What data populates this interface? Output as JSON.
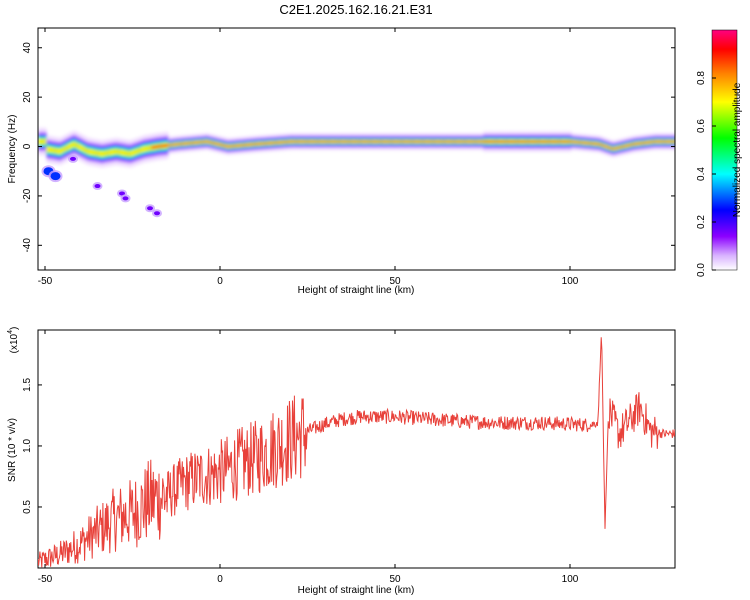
{
  "title": "C2E1.2025.162.16.21.E31",
  "chart_data": [
    {
      "type": "heatmap",
      "xlabel": "Height of straight line (km)",
      "ylabel": "Frequency (Hz)",
      "xlim": [
        -52,
        130
      ],
      "ylim": [
        -50,
        48
      ],
      "xticks": [
        -50,
        0,
        50,
        100
      ],
      "xtick_labels": [
        "-50",
        "0",
        "50",
        "100"
      ],
      "yticks": [
        40,
        20,
        0,
        -20,
        -40
      ],
      "ytick_labels": [
        "40",
        "20",
        "0",
        "-20",
        "-40"
      ],
      "ridge": [
        {
          "x": -50,
          "f": -1
        },
        {
          "x": -46,
          "f": -2
        },
        {
          "x": -42,
          "f": 1
        },
        {
          "x": -38,
          "f": -2
        },
        {
          "x": -34,
          "f": -3
        },
        {
          "x": -30,
          "f": -2
        },
        {
          "x": -26,
          "f": -3
        },
        {
          "x": -22,
          "f": -1
        },
        {
          "x": -18,
          "f": 0
        },
        {
          "x": -12,
          "f": 1
        },
        {
          "x": -4,
          "f": 2
        },
        {
          "x": 2,
          "f": 0
        },
        {
          "x": 10,
          "f": 1
        },
        {
          "x": 20,
          "f": 2
        },
        {
          "x": 40,
          "f": 2
        },
        {
          "x": 60,
          "f": 2
        },
        {
          "x": 80,
          "f": 2
        },
        {
          "x": 100,
          "f": 2
        },
        {
          "x": 108,
          "f": 1
        },
        {
          "x": 112,
          "f": -1
        },
        {
          "x": 118,
          "f": 1
        },
        {
          "x": 124,
          "f": 2
        },
        {
          "x": 130,
          "f": 2
        }
      ],
      "blobs": [
        {
          "x": -49,
          "f": -10
        },
        {
          "x": -47,
          "f": -12
        },
        {
          "x": -42,
          "f": -5
        },
        {
          "x": -35,
          "f": -16
        },
        {
          "x": -28,
          "f": -19
        },
        {
          "x": -27,
          "f": -21
        },
        {
          "x": -18,
          "f": -27
        },
        {
          "x": -20,
          "f": -25
        }
      ],
      "colorbar": {
        "label": "Normalized spectral amplitude",
        "ticks": [
          0.0,
          0.2,
          0.4,
          0.6,
          0.8
        ],
        "tick_labels": [
          "0.0",
          "0.2",
          "0.4",
          "0.6",
          "0.8"
        ],
        "colors": [
          "#ffffff",
          "#9a00ff",
          "#0000ff",
          "#00ffff",
          "#00ff00",
          "#ffff00",
          "#ff8000",
          "#ff0000",
          "#ff0080"
        ]
      }
    },
    {
      "type": "line",
      "xlabel": "Height of straight line (km)",
      "ylabel": "SNR (10 * v/v)",
      "exponent_label": "(x10",
      "exponent": "4",
      "xlim": [
        -52,
        130
      ],
      "ylim": [
        0.0,
        1.95
      ],
      "xticks": [
        -50,
        0,
        50,
        100
      ],
      "xtick_labels": [
        "-50",
        "0",
        "50",
        "100"
      ],
      "yticks": [
        0.5,
        1.0,
        1.5
      ],
      "ytick_labels": [
        "0.5",
        "1.0",
        "1.5"
      ],
      "color": "#e8413a",
      "series": [
        {
          "values_envelope": [
            {
              "x": -52,
              "y": 0.05
            },
            {
              "x": -45,
              "y": 0.12
            },
            {
              "x": -40,
              "y": 0.2
            },
            {
              "x": -35,
              "y": 0.3
            },
            {
              "x": -30,
              "y": 0.4
            },
            {
              "x": -25,
              "y": 0.45
            },
            {
              "x": -20,
              "y": 0.55
            },
            {
              "x": -15,
              "y": 0.6
            },
            {
              "x": -10,
              "y": 0.7
            },
            {
              "x": -5,
              "y": 0.75
            },
            {
              "x": 0,
              "y": 0.78
            },
            {
              "x": 5,
              "y": 0.85
            },
            {
              "x": 10,
              "y": 0.9
            },
            {
              "x": 15,
              "y": 0.98
            },
            {
              "x": 20,
              "y": 1.05
            },
            {
              "x": 25,
              "y": 1.12
            },
            {
              "x": 30,
              "y": 1.18
            },
            {
              "x": 35,
              "y": 1.22
            },
            {
              "x": 40,
              "y": 1.24
            },
            {
              "x": 50,
              "y": 1.24
            },
            {
              "x": 60,
              "y": 1.22
            },
            {
              "x": 70,
              "y": 1.2
            },
            {
              "x": 80,
              "y": 1.19
            },
            {
              "x": 90,
              "y": 1.19
            },
            {
              "x": 100,
              "y": 1.18
            },
            {
              "x": 106,
              "y": 1.17
            },
            {
              "x": 108,
              "y": 1.2
            },
            {
              "x": 109,
              "y": 1.95
            },
            {
              "x": 110,
              "y": 0.32
            },
            {
              "x": 111,
              "y": 1.3
            },
            {
              "x": 114,
              "y": 1.1
            },
            {
              "x": 117,
              "y": 1.2
            },
            {
              "x": 120,
              "y": 1.32
            },
            {
              "x": 123,
              "y": 1.12
            },
            {
              "x": 127,
              "y": 1.1
            },
            {
              "x": 130,
              "y": 1.1
            }
          ]
        }
      ]
    }
  ]
}
